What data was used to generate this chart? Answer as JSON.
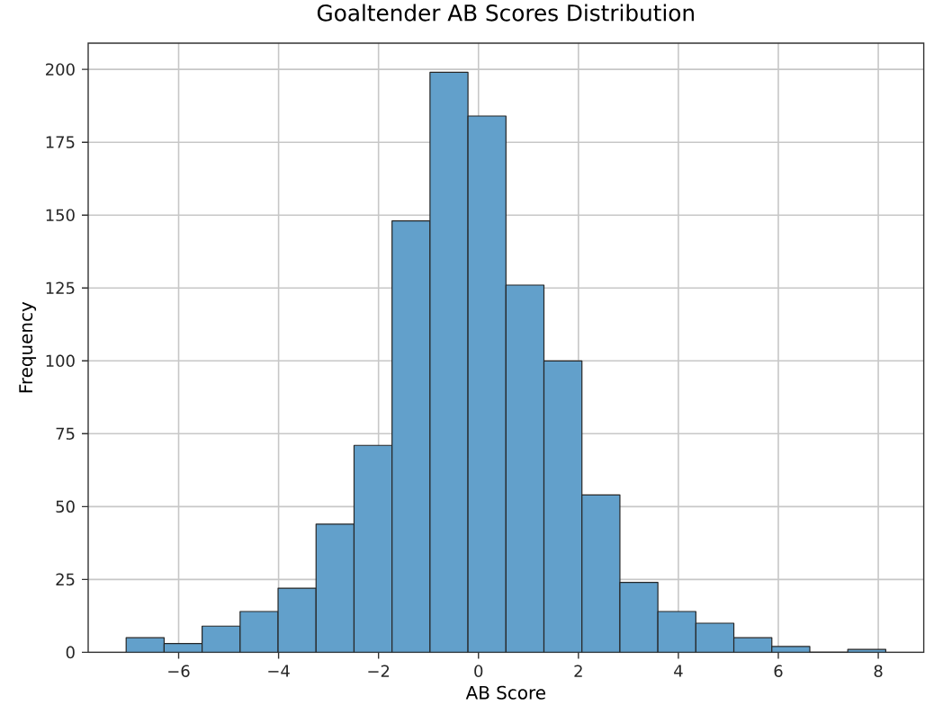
{
  "chart_data": {
    "type": "histogram",
    "title": "Goaltender AB Scores Distribution",
    "xlabel": "AB Score",
    "ylabel": "Frequency",
    "bins": [
      -7.05,
      -6.29,
      -5.53,
      -4.77,
      -4.01,
      -3.25,
      -2.49,
      -1.73,
      -0.97,
      -0.21,
      0.55,
      1.31,
      2.07,
      2.83,
      3.59,
      4.35,
      5.11,
      5.87,
      6.63,
      7.39,
      8.15
    ],
    "values": [
      5,
      3,
      9,
      14,
      22,
      44,
      71,
      148,
      199,
      184,
      126,
      100,
      54,
      24,
      14,
      10,
      5,
      2,
      0,
      1
    ],
    "color": "#62a0cb",
    "xlim": [
      -7.81,
      8.91
    ],
    "ylim": [
      0,
      209
    ],
    "xticks": [
      {
        "value": -6,
        "label": "−6"
      },
      {
        "value": -4,
        "label": "−4"
      },
      {
        "value": -2,
        "label": "−2"
      },
      0,
      2,
      4,
      6,
      8
    ],
    "yticks": [
      0,
      25,
      50,
      75,
      100,
      125,
      150,
      175,
      200
    ],
    "grid": true
  }
}
